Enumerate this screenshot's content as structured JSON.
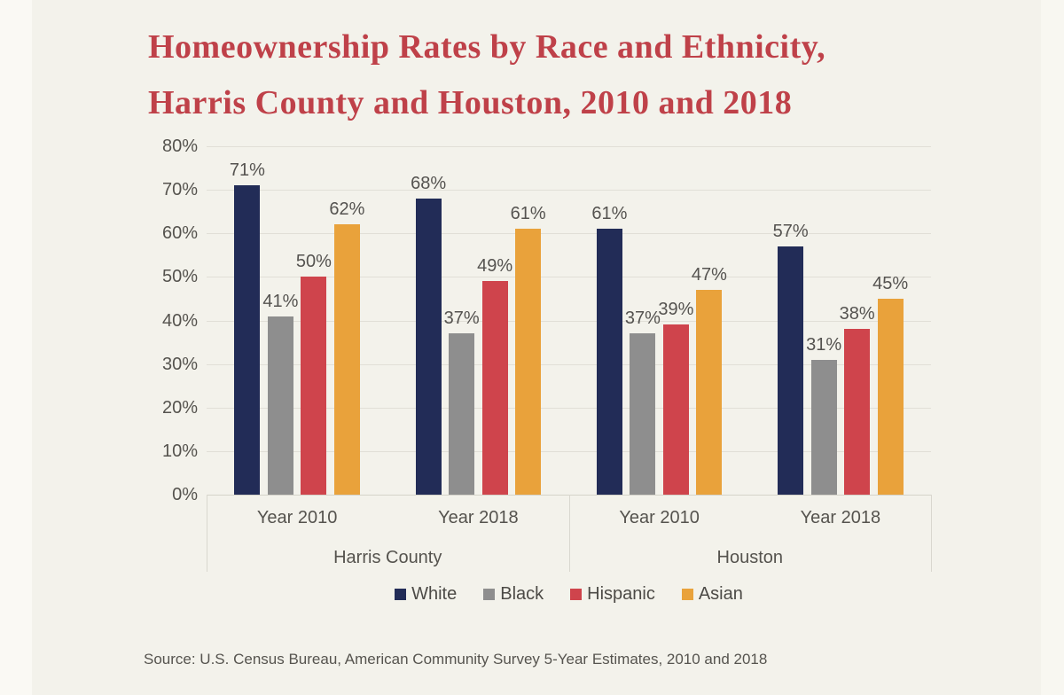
{
  "title": {
    "line1": "Homeownership Rates by Race and Ethnicity,",
    "line2": "Harris County and Houston, 2010 and 2018"
  },
  "source": "Source: U.S. Census Bureau, American Community Survey 5-Year Estimates, 2010 and 2018",
  "colors": {
    "background": "#f3f2eb",
    "title_red": "#bf4149",
    "axis_text": "#55534e",
    "gridline": "#e1dfd7",
    "axis_line": "#d5d3ca"
  },
  "chart_data": {
    "type": "bar",
    "title": "Homeownership Rates by Race and Ethnicity, Harris County and Houston, 2010 and 2018",
    "categories": [
      "Year 2010",
      "Year 2018",
      "Year 2010",
      "Year 2018"
    ],
    "super_categories": [
      {
        "label": "Harris County",
        "span": [
          0,
          1
        ]
      },
      {
        "label": "Houston",
        "span": [
          2,
          3
        ]
      }
    ],
    "series": [
      {
        "name": "White",
        "color": "#222c57",
        "values": [
          71,
          68,
          61,
          57
        ]
      },
      {
        "name": "Black",
        "color": "#8e8e8e",
        "values": [
          41,
          37,
          37,
          31
        ]
      },
      {
        "name": "Hispanic",
        "color": "#cf444c",
        "values": [
          50,
          49,
          39,
          38
        ]
      },
      {
        "name": "Asian",
        "color": "#e9a23b",
        "values": [
          62,
          61,
          47,
          45
        ]
      }
    ],
    "ylim": [
      0,
      80
    ],
    "ytick_step": 10,
    "ytick_labels": [
      "0%",
      "10%",
      "20%",
      "30%",
      "40%",
      "50%",
      "60%",
      "70%",
      "80%"
    ],
    "value_suffix": "%",
    "grid": true,
    "legend_position": "bottom"
  }
}
